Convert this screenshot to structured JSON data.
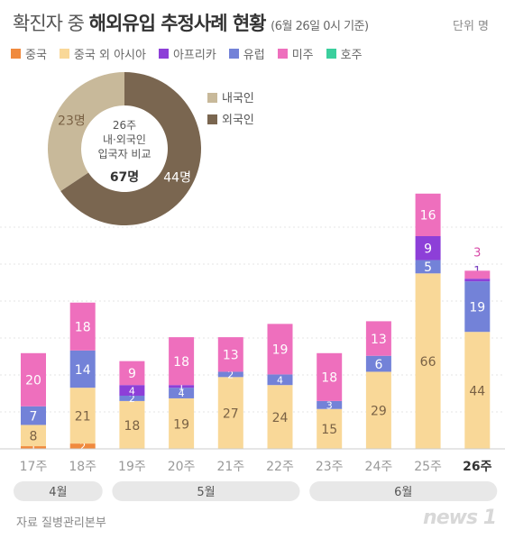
{
  "header": {
    "title_prefix": "확진자 중 ",
    "title_bold": "해외유입 추정사례 현황",
    "title_sub": "(6월 26일 0시 기준)",
    "unit": "단위 명"
  },
  "legend": [
    {
      "label": "중국",
      "color": "#f08a3e"
    },
    {
      "label": "중국 외 아시아",
      "color": "#f9d898"
    },
    {
      "label": "아프리카",
      "color": "#8d3fd8"
    },
    {
      "label": "유럽",
      "color": "#7382d8"
    },
    {
      "label": "미주",
      "color": "#ee6fbd"
    },
    {
      "label": "호주",
      "color": "#3bcf9d"
    }
  ],
  "chart_data": [
    {
      "type": "bar",
      "categories": [
        "17주",
        "18주",
        "19주",
        "20주",
        "21주",
        "22주",
        "23주",
        "24주",
        "25주",
        "26주"
      ],
      "series": [
        {
          "name": "중국",
          "values": [
            1,
            2,
            0,
            0,
            0,
            0,
            0,
            0,
            0,
            0
          ]
        },
        {
          "name": "중국 외 아시아",
          "values": [
            8,
            21,
            18,
            19,
            27,
            24,
            15,
            29,
            66,
            44
          ]
        },
        {
          "name": "유럽",
          "values": [
            7,
            14,
            2,
            4,
            2,
            4,
            3,
            6,
            5,
            19
          ]
        },
        {
          "name": "아프리카",
          "values": [
            0,
            0,
            4,
            1,
            0,
            0,
            0,
            0,
            9,
            1
          ]
        },
        {
          "name": "미주",
          "values": [
            20,
            18,
            9,
            18,
            13,
            19,
            18,
            13,
            16,
            3
          ]
        }
      ],
      "month_groups": [
        {
          "label": "4월",
          "from": 0,
          "to": 1
        },
        {
          "label": "5월",
          "from": 2,
          "to": 5
        },
        {
          "label": "6월",
          "from": 6,
          "to": 9
        }
      ],
      "highlight_category": "26주"
    },
    {
      "type": "pie",
      "title_lines": [
        "26주",
        "내·외국인",
        "입국자 비교"
      ],
      "total": "67명",
      "slices": [
        {
          "label": "내국인",
          "value": 23,
          "display": "23명",
          "color": "#c8b99a"
        },
        {
          "label": "외국인",
          "value": 44,
          "display": "44명",
          "color": "#7a6650"
        }
      ]
    }
  ],
  "footer": {
    "source": "자료  질병관리본부",
    "logo": "news 1"
  }
}
